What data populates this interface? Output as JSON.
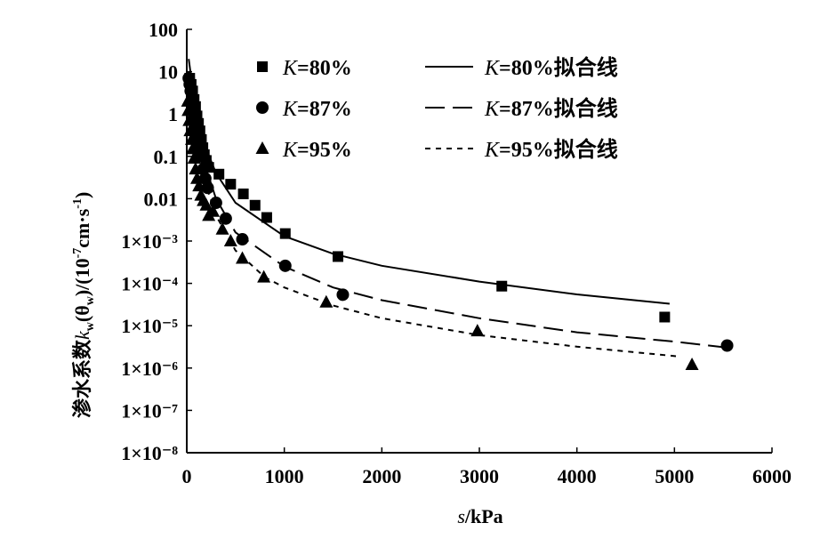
{
  "chart_data": {
    "type": "scatter",
    "title": "",
    "xlabel": {
      "var": "s",
      "unit": "/kPa"
    },
    "ylabel": {
      "prefix": "渗水系数",
      "var": "k",
      "sub": "w",
      "mid": "(θ",
      "mid_sub": "w",
      "unit": ")/(10",
      "unit_sup": "-7",
      "unit_tail": "cm·s",
      "unit_tail_sup": "-1",
      "close": ")"
    },
    "xlim": [
      0,
      6000
    ],
    "ylim": [
      1e-08,
      100
    ],
    "yscale": "log",
    "x_ticks": [
      0,
      1000,
      2000,
      3000,
      4000,
      5000,
      6000
    ],
    "x_tick_labels": [
      "0",
      "1000",
      "2000",
      "3000",
      "4000",
      "5000",
      "6000"
    ],
    "y_ticks": [
      100,
      10,
      1,
      0.1,
      0.01,
      0.001,
      0.0001,
      1e-05,
      1e-06,
      1e-07,
      1e-08
    ],
    "y_tick_labels": [
      "100",
      "10",
      "1",
      "0.1",
      "0.01",
      "1×10⁻³",
      "1×10⁻⁴",
      "1×10⁻⁵",
      "1×10⁻⁶",
      "1×10⁻⁷",
      "1×10⁻⁸"
    ],
    "legend_position": "top-right",
    "series": [
      {
        "name": "K=80%",
        "label_var": "K",
        "label_rest": "=80%",
        "marker": "square",
        "points": [
          [
            30,
            7
          ],
          [
            45,
            5
          ],
          [
            60,
            3.5
          ],
          [
            75,
            2.2
          ],
          [
            90,
            1.5
          ],
          [
            105,
            0.9
          ],
          [
            120,
            0.6
          ],
          [
            135,
            0.4
          ],
          [
            150,
            0.25
          ],
          [
            165,
            0.16
          ],
          [
            180,
            0.11
          ],
          [
            200,
            0.08
          ],
          [
            225,
            0.055
          ],
          [
            330,
            0.038
          ],
          [
            450,
            0.022
          ],
          [
            580,
            0.013
          ],
          [
            700,
            0.007
          ],
          [
            820,
            0.0036
          ],
          [
            1010,
            0.0015
          ],
          [
            1550,
            0.00043
          ],
          [
            3230,
            8.6e-05
          ],
          [
            4900,
            1.6e-05
          ]
        ]
      },
      {
        "name": "K=87%",
        "label_var": "K",
        "label_rest": "=87%",
        "marker": "circle",
        "points": [
          [
            20,
            7
          ],
          [
            30,
            5
          ],
          [
            40,
            3.5
          ],
          [
            55,
            2.2
          ],
          [
            70,
            1.3
          ],
          [
            85,
            0.8
          ],
          [
            100,
            0.5
          ],
          [
            115,
            0.3
          ],
          [
            130,
            0.18
          ],
          [
            150,
            0.1
          ],
          [
            170,
            0.05
          ],
          [
            190,
            0.03
          ],
          [
            215,
            0.018
          ],
          [
            300,
            0.008
          ],
          [
            400,
            0.0034
          ],
          [
            570,
            0.0011
          ],
          [
            1010,
            0.00026
          ],
          [
            1600,
            5.4e-05
          ],
          [
            5540,
            3.4e-06
          ]
        ]
      },
      {
        "name": "K=95%",
        "label_var": "K",
        "label_rest": "=95%",
        "marker": "triangle",
        "points": [
          [
            10,
            2
          ],
          [
            15,
            1.2
          ],
          [
            25,
            0.7
          ],
          [
            35,
            0.4
          ],
          [
            50,
            0.25
          ],
          [
            60,
            0.15
          ],
          [
            75,
            0.09
          ],
          [
            90,
            0.05
          ],
          [
            105,
            0.03
          ],
          [
            125,
            0.02
          ],
          [
            145,
            0.012
          ],
          [
            170,
            0.009
          ],
          [
            200,
            0.007
          ],
          [
            225,
            0.004
          ],
          [
            270,
            0.005
          ],
          [
            365,
            0.0019
          ],
          [
            450,
            0.001
          ],
          [
            570,
            0.00039
          ],
          [
            790,
            0.00014
          ],
          [
            1430,
            3.6e-05
          ],
          [
            2980,
            7.5e-06
          ],
          [
            5180,
            1.2e-06
          ]
        ]
      }
    ],
    "fit_lines": [
      {
        "name": "K=80%拟合线",
        "label_var": "K",
        "label_rest": "=80%拟合线",
        "style": "solid",
        "points": [
          [
            20,
            20
          ],
          [
            60,
            4
          ],
          [
            100,
            1.5
          ],
          [
            150,
            0.4
          ],
          [
            200,
            0.15
          ],
          [
            300,
            0.04
          ],
          [
            500,
            0.008
          ],
          [
            1000,
            0.0013
          ],
          [
            1500,
            0.0005
          ],
          [
            2000,
            0.00026
          ],
          [
            3000,
            0.00011
          ],
          [
            4000,
            5.5e-05
          ],
          [
            4950,
            3.3e-05
          ]
        ]
      },
      {
        "name": "K=87%拟合线",
        "label_var": "K",
        "label_rest": "=87%拟合线",
        "style": "long-dash",
        "points": [
          [
            20,
            10
          ],
          [
            60,
            2
          ],
          [
            100,
            0.6
          ],
          [
            150,
            0.15
          ],
          [
            200,
            0.05
          ],
          [
            300,
            0.01
          ],
          [
            500,
            0.0016
          ],
          [
            1000,
            0.00025
          ],
          [
            1500,
            8e-05
          ],
          [
            2000,
            4e-05
          ],
          [
            3000,
            1.5e-05
          ],
          [
            4000,
            7e-06
          ],
          [
            5000,
            4.2e-06
          ],
          [
            5560,
            3e-06
          ]
        ]
      },
      {
        "name": "K=95%拟合线",
        "label_var": "K",
        "label_rest": "=95%拟合线",
        "style": "short-dash",
        "points": [
          [
            20,
            5
          ],
          [
            60,
            1
          ],
          [
            100,
            0.3
          ],
          [
            150,
            0.07
          ],
          [
            200,
            0.02
          ],
          [
            300,
            0.004
          ],
          [
            500,
            0.0006
          ],
          [
            800,
            0.00014
          ],
          [
            1000,
            8e-05
          ],
          [
            1500,
            3e-05
          ],
          [
            2000,
            1.5e-05
          ],
          [
            3000,
            6e-06
          ],
          [
            4000,
            3.2e-06
          ],
          [
            5020,
            1.9e-06
          ]
        ]
      }
    ]
  }
}
